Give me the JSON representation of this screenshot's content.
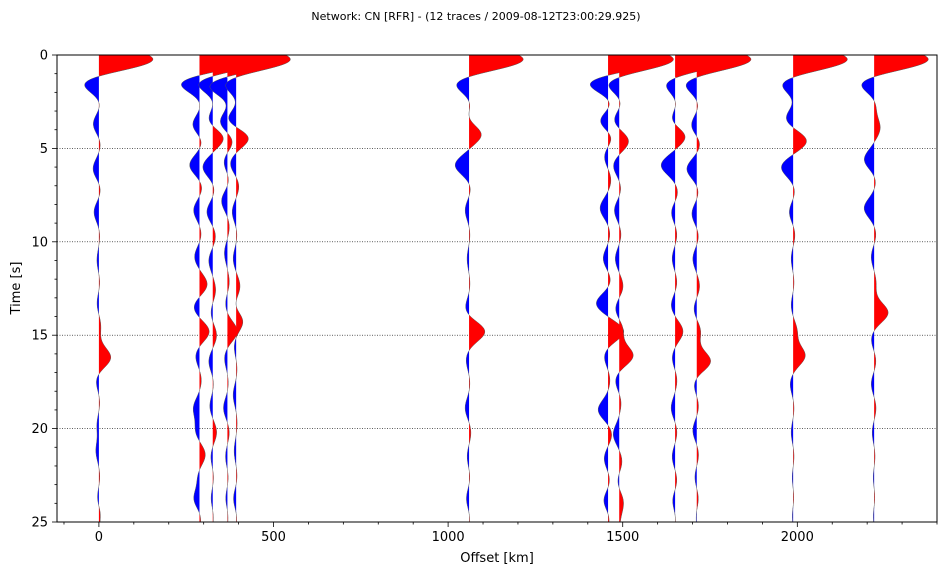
{
  "chart_data": {
    "type": "record_section",
    "title": "Network: CN [RFR] - (12 traces / 2009-08-12T23:00:29.925)",
    "xlabel": "Offset [km]",
    "ylabel": "Time [s]",
    "xlim": [
      -120,
      2400
    ],
    "ylim": [
      25,
      0
    ],
    "y_inverted": true,
    "x_ticks": [
      0,
      500,
      1000,
      1500,
      2000
    ],
    "x_minor_step": 100,
    "y_ticks": [
      0,
      5,
      10,
      15,
      20,
      25
    ],
    "y_minor_step": 1,
    "grid": "horizontal dotted at major y ticks",
    "positive_fill_color": "#ff0000",
    "negative_fill_color": "#0000ff",
    "trace_offsets_km": [
      0,
      288,
      326,
      368,
      393,
      1060,
      1458,
      1490,
      1650,
      1712,
      1988,
      2220
    ],
    "traces": [
      {
        "offset": 0,
        "lobes": [
          [
            0.25,
            55
          ],
          [
            1.45,
            -18
          ],
          [
            2.6,
            2
          ],
          [
            3.7,
            -6
          ],
          [
            4.7,
            2
          ],
          [
            6.1,
            -6
          ],
          [
            7.2,
            2
          ],
          [
            8.4,
            -5
          ],
          [
            9.6,
            1
          ],
          [
            11.0,
            -2
          ],
          [
            12.2,
            1
          ],
          [
            13.3,
            -2
          ],
          [
            14.5,
            2
          ],
          [
            16.2,
            12
          ],
          [
            17.4,
            -3
          ],
          [
            18.6,
            1
          ],
          [
            19.8,
            -2
          ],
          [
            21.2,
            -3
          ],
          [
            22.6,
            1
          ],
          [
            23.8,
            -2
          ],
          [
            24.5,
            2
          ]
        ]
      },
      {
        "offset": 288,
        "lobes": [
          [
            0.25,
            55
          ],
          [
            1.45,
            -22
          ],
          [
            2.6,
            2
          ],
          [
            3.8,
            -8
          ],
          [
            4.5,
            4
          ],
          [
            5.9,
            -10
          ],
          [
            7.1,
            3
          ],
          [
            8.3,
            -6
          ],
          [
            9.6,
            2
          ],
          [
            10.8,
            -5
          ],
          [
            12.3,
            8
          ],
          [
            13.5,
            -6
          ],
          [
            14.8,
            10
          ],
          [
            16.1,
            -4
          ],
          [
            17.4,
            2
          ],
          [
            18.9,
            -6
          ],
          [
            20.1,
            -4
          ],
          [
            21.4,
            6
          ],
          [
            22.6,
            -2
          ],
          [
            23.8,
            -6
          ],
          [
            24.6,
            2
          ]
        ]
      },
      {
        "offset": 326,
        "lobes": [
          [
            0.25,
            55
          ],
          [
            1.45,
            -18
          ],
          [
            2.4,
            2
          ],
          [
            3.6,
            -6
          ],
          [
            4.4,
            12
          ],
          [
            6.0,
            -10
          ],
          [
            7.2,
            2
          ],
          [
            8.4,
            -6
          ],
          [
            9.7,
            3
          ],
          [
            11.0,
            -4
          ],
          [
            12.6,
            3
          ],
          [
            13.8,
            -2
          ],
          [
            15.0,
            4
          ],
          [
            16.4,
            -4
          ],
          [
            17.6,
            1
          ],
          [
            18.8,
            -3
          ],
          [
            20.2,
            4
          ],
          [
            21.5,
            -2
          ],
          [
            22.6,
            1
          ],
          [
            23.8,
            -2
          ],
          [
            24.5,
            1
          ]
        ]
      },
      {
        "offset": 368,
        "lobes": [
          [
            0.25,
            55
          ],
          [
            1.6,
            -20
          ],
          [
            2.6,
            2
          ],
          [
            3.6,
            -8
          ],
          [
            4.6,
            6
          ],
          [
            5.7,
            -4
          ],
          [
            6.7,
            2
          ],
          [
            7.8,
            -6
          ],
          [
            9.2,
            2
          ],
          [
            10.6,
            -3
          ],
          [
            12.2,
            2
          ],
          [
            13.3,
            -2
          ],
          [
            14.8,
            10
          ],
          [
            16.2,
            -3
          ],
          [
            17.6,
            1
          ],
          [
            18.9,
            -4
          ],
          [
            20.2,
            2
          ],
          [
            21.5,
            -2
          ],
          [
            22.6,
            1
          ],
          [
            23.8,
            -2
          ],
          [
            24.5,
            1
          ]
        ]
      },
      {
        "offset": 393,
        "lobes": [
          [
            0.25,
            55
          ],
          [
            1.45,
            -14
          ],
          [
            2.6,
            2
          ],
          [
            3.5,
            -10
          ],
          [
            4.4,
            14
          ],
          [
            5.8,
            -6
          ],
          [
            7.0,
            3
          ],
          [
            8.4,
            -4
          ],
          [
            9.6,
            1
          ],
          [
            10.9,
            -3
          ],
          [
            12.4,
            4
          ],
          [
            13.6,
            -3
          ],
          [
            14.2,
            8
          ],
          [
            15.6,
            -2
          ],
          [
            16.8,
            1
          ],
          [
            18.2,
            -3
          ],
          [
            19.7,
            1
          ],
          [
            21.2,
            -2
          ],
          [
            22.6,
            1
          ],
          [
            23.8,
            -3
          ],
          [
            24.5,
            1
          ]
        ]
      },
      {
        "offset": 1060,
        "lobes": [
          [
            0.25,
            55
          ],
          [
            1.45,
            -16
          ],
          [
            2.6,
            2
          ],
          [
            3.6,
            -4
          ],
          [
            4.2,
            14
          ],
          [
            5.9,
            -14
          ],
          [
            7.1,
            2
          ],
          [
            8.3,
            -4
          ],
          [
            9.6,
            1
          ],
          [
            10.9,
            -2
          ],
          [
            12.3,
            1
          ],
          [
            13.6,
            -4
          ],
          [
            14.8,
            16
          ],
          [
            16.3,
            -3
          ],
          [
            17.6,
            1
          ],
          [
            18.9,
            -4
          ],
          [
            20.2,
            2
          ],
          [
            21.5,
            -2
          ],
          [
            22.6,
            1
          ],
          [
            23.8,
            -3
          ],
          [
            24.5,
            1
          ]
        ]
      },
      {
        "offset": 1458,
        "lobes": [
          [
            0.25,
            55
          ],
          [
            1.45,
            -22
          ],
          [
            2.6,
            4
          ],
          [
            3.6,
            -10
          ],
          [
            4.3,
            6
          ],
          [
            5.4,
            -4
          ],
          [
            6.7,
            3
          ],
          [
            8.2,
            -8
          ],
          [
            9.6,
            2
          ],
          [
            10.9,
            -5
          ],
          [
            12.1,
            3
          ],
          [
            13.3,
            -12
          ],
          [
            14.8,
            16
          ],
          [
            16.1,
            -4
          ],
          [
            17.4,
            2
          ],
          [
            19.0,
            -10
          ],
          [
            20.3,
            4
          ],
          [
            21.6,
            -4
          ],
          [
            22.8,
            2
          ],
          [
            23.9,
            -5
          ],
          [
            24.6,
            2
          ]
        ]
      },
      {
        "offset": 1490,
        "lobes": [
          [
            0.25,
            55
          ],
          [
            1.45,
            -14
          ],
          [
            2.6,
            3
          ],
          [
            3.5,
            -6
          ],
          [
            4.6,
            10
          ],
          [
            5.9,
            -6
          ],
          [
            7.2,
            2
          ],
          [
            8.3,
            -5
          ],
          [
            9.6,
            2
          ],
          [
            10.9,
            -4
          ],
          [
            12.4,
            4
          ],
          [
            13.6,
            -4
          ],
          [
            14.7,
            4
          ],
          [
            16.1,
            14
          ],
          [
            17.4,
            -4
          ],
          [
            18.6,
            2
          ],
          [
            20.3,
            -6
          ],
          [
            21.8,
            3
          ],
          [
            22.8,
            -2
          ],
          [
            23.9,
            4
          ],
          [
            24.6,
            1
          ]
        ]
      },
      {
        "offset": 1650,
        "lobes": [
          [
            0.25,
            55
          ],
          [
            1.45,
            -12
          ],
          [
            2.6,
            2
          ],
          [
            3.6,
            -6
          ],
          [
            4.3,
            12
          ],
          [
            5.9,
            -14
          ],
          [
            7.4,
            3
          ],
          [
            8.4,
            -4
          ],
          [
            9.6,
            2
          ],
          [
            10.9,
            -3
          ],
          [
            12.2,
            2
          ],
          [
            13.4,
            -4
          ],
          [
            14.8,
            8
          ],
          [
            16.2,
            -3
          ],
          [
            17.4,
            2
          ],
          [
            18.9,
            -4
          ],
          [
            20.2,
            2
          ],
          [
            21.5,
            -3
          ],
          [
            22.8,
            2
          ],
          [
            23.9,
            -3
          ],
          [
            24.5,
            1
          ]
        ]
      },
      {
        "offset": 1712,
        "lobes": [
          [
            0.25,
            55
          ],
          [
            1.45,
            -14
          ],
          [
            2.7,
            2
          ],
          [
            3.8,
            -6
          ],
          [
            4.7,
            4
          ],
          [
            6.1,
            -10
          ],
          [
            7.3,
            2
          ],
          [
            8.5,
            -5
          ],
          [
            9.7,
            2
          ],
          [
            10.9,
            -4
          ],
          [
            12.4,
            3
          ],
          [
            13.6,
            -3
          ],
          [
            14.8,
            4
          ],
          [
            16.4,
            14
          ],
          [
            17.6,
            -3
          ],
          [
            18.8,
            2
          ],
          [
            20.1,
            -4
          ],
          [
            21.4,
            2
          ],
          [
            22.6,
            -2
          ],
          [
            23.8,
            2
          ],
          [
            24.5,
            -1
          ]
        ]
      },
      {
        "offset": 1988,
        "lobes": [
          [
            0.25,
            55
          ],
          [
            1.45,
            -14
          ],
          [
            2.6,
            2
          ],
          [
            3.4,
            -8
          ],
          [
            4.6,
            14
          ],
          [
            6.0,
            -12
          ],
          [
            7.3,
            2
          ],
          [
            8.4,
            -4
          ],
          [
            9.6,
            2
          ],
          [
            10.9,
            -2
          ],
          [
            12.2,
            1
          ],
          [
            13.4,
            -2
          ],
          [
            14.8,
            4
          ],
          [
            16.1,
            12
          ],
          [
            17.6,
            -3
          ],
          [
            18.9,
            1
          ],
          [
            20.2,
            -2
          ],
          [
            21.5,
            1
          ],
          [
            22.6,
            -1
          ],
          [
            23.8,
            1
          ],
          [
            24.5,
            -1
          ]
        ]
      },
      {
        "offset": 2220,
        "lobes": [
          [
            0.25,
            55
          ],
          [
            1.45,
            -16
          ],
          [
            2.6,
            2
          ],
          [
            3.9,
            6
          ],
          [
            5.6,
            -10
          ],
          [
            6.7,
            2
          ],
          [
            8.2,
            -10
          ],
          [
            9.6,
            2
          ],
          [
            10.8,
            -3
          ],
          [
            12.2,
            2
          ],
          [
            13.8,
            14
          ],
          [
            15.2,
            -3
          ],
          [
            16.4,
            2
          ],
          [
            17.6,
            -3
          ],
          [
            18.9,
            2
          ],
          [
            20.2,
            -2
          ],
          [
            21.5,
            1
          ],
          [
            22.6,
            -1
          ],
          [
            23.8,
            1
          ],
          [
            24.5,
            -1
          ]
        ]
      }
    ]
  }
}
